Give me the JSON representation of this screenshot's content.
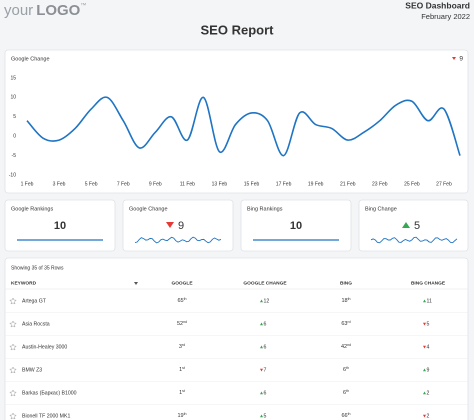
{
  "header": {
    "logo_light": "your",
    "logo_bold": "LOGO",
    "logo_mark": "™",
    "dashboard": "SEO Dashboard",
    "period": "February 2022",
    "title": "SEO Report"
  },
  "chart": {
    "type": "line",
    "title": "Google Change",
    "badge": "9",
    "badge_direction": "down",
    "color": "#1f74c4",
    "categories": [
      "1 Feb",
      null,
      "3 Feb",
      null,
      "5 Feb",
      null,
      "7 Feb",
      null,
      "9 Feb",
      null,
      "11 Feb",
      null,
      "13 Feb",
      null,
      "15 Feb",
      null,
      "17 Feb",
      null,
      "19 Feb",
      null,
      "21 Feb",
      null,
      "23 Feb",
      null,
      "25 Feb",
      null,
      "27 Feb",
      null
    ],
    "values": [
      4,
      -0.5,
      -1,
      2,
      7,
      10,
      4,
      -3,
      1,
      5,
      -1,
      10,
      -4,
      3,
      6,
      4,
      -5,
      6,
      3,
      2,
      -1,
      1,
      4,
      8,
      9,
      4,
      7,
      -5
    ],
    "ylim": [
      -10,
      15
    ],
    "yticks": [
      15,
      10,
      5,
      0,
      -5,
      -10
    ],
    "grid": false
  },
  "cards": [
    {
      "title": "Google Rankings",
      "value": "10",
      "kind": "flat"
    },
    {
      "title": "Google Change",
      "value": "9",
      "kind": "wiggle",
      "direction": "down"
    },
    {
      "title": "Bing Rankings",
      "value": "10",
      "kind": "flat"
    },
    {
      "title": "Bing Change",
      "value": "5",
      "kind": "wiggle",
      "direction": "up"
    }
  ],
  "table": {
    "summary": "Showing 35 of 35 Rows",
    "columns": [
      "KEYWORD",
      "GOOGLE",
      "GOOGLE CHANGE",
      "BING",
      "BING CHANGE"
    ],
    "rows": [
      {
        "keyword": "Artega GT",
        "google": "65",
        "google_suffix": "th",
        "google_change": "12",
        "google_dir": "up",
        "bing": "18",
        "bing_suffix": "th",
        "bing_change": "11",
        "bing_dir": "up"
      },
      {
        "keyword": "Asia Rocsta",
        "google": "52",
        "google_suffix": "nd",
        "google_change": "6",
        "google_dir": "up",
        "bing": "63",
        "bing_suffix": "rd",
        "bing_change": "5",
        "bing_dir": "down"
      },
      {
        "keyword": "Austin-Healey 3000",
        "google": "3",
        "google_suffix": "rd",
        "google_change": "6",
        "google_dir": "up",
        "bing": "42",
        "bing_suffix": "nd",
        "bing_change": "4",
        "bing_dir": "down"
      },
      {
        "keyword": "BMW Z3",
        "google": "1",
        "google_suffix": "st",
        "google_change": "7",
        "google_dir": "down",
        "bing": "6",
        "bing_suffix": "th",
        "bing_change": "9",
        "bing_dir": "up"
      },
      {
        "keyword": "Barkas (Баркас) B1000",
        "google": "1",
        "google_suffix": "st",
        "google_change": "6",
        "google_dir": "up",
        "bing": "6",
        "bing_suffix": "th",
        "bing_change": "2",
        "bing_dir": "up"
      },
      {
        "keyword": "Bionell TF 2000 MK1",
        "google": "19",
        "google_suffix": "th",
        "google_change": "5",
        "google_dir": "up",
        "bing": "66",
        "bing_suffix": "th",
        "bing_change": "2",
        "bing_dir": "down"
      }
    ]
  }
}
